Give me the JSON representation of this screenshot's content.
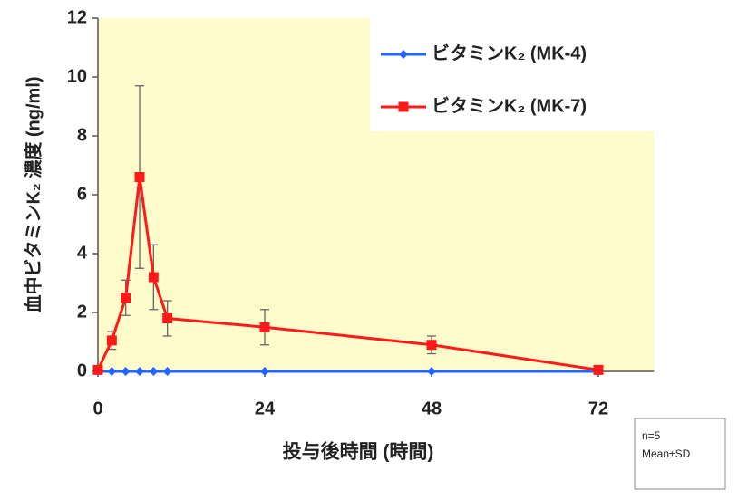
{
  "chart_data": {
    "type": "line",
    "ylabel": "血中ビタミンK₂ 濃度 (ng/ml)",
    "xlabel": "投与後時間 (時間)",
    "note": [
      "n=5",
      "Mean±SD"
    ],
    "x": [
      0,
      2,
      4,
      6,
      8,
      10,
      24,
      48,
      72
    ],
    "series": [
      {
        "name": "ビタミンK₂ (MK-4)",
        "color": "#2266ff",
        "marker": "diamond",
        "values": [
          0,
          0,
          0,
          0,
          0,
          0,
          0,
          0,
          0
        ],
        "errors": [
          0,
          0,
          0,
          0,
          0,
          0,
          0,
          0,
          0
        ]
      },
      {
        "name": "ビタミンK₂ (MK-7)",
        "color": "#ff1a1a",
        "marker": "square",
        "values": [
          0.05,
          1.05,
          2.5,
          6.6,
          3.2,
          1.8,
          1.5,
          0.9,
          0.05
        ],
        "errors": [
          0,
          0.3,
          0.6,
          3.1,
          1.1,
          0.6,
          0.6,
          0.3,
          0.05
        ]
      }
    ],
    "xlim": [
      0,
      80
    ],
    "xticks": [
      0,
      24,
      48,
      72
    ],
    "ylim": [
      0,
      12
    ],
    "yticks": [
      0,
      2,
      4,
      6,
      8,
      10,
      12
    ],
    "plot_background": "#fffccc"
  }
}
